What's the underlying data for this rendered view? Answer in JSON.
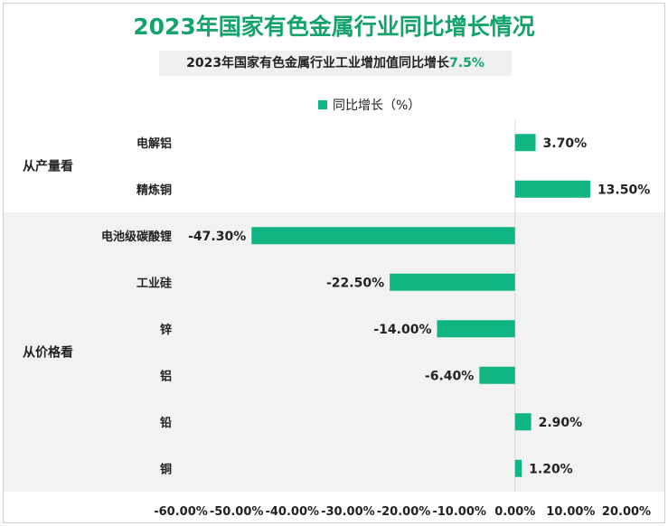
{
  "chart_data": {
    "type": "bar",
    "orientation": "horizontal",
    "title": "2023年国家有色金属行业同比增长情况",
    "subtitle": "2023年国家有色金属行业工业增加值同比增长",
    "subtitle_value": "7.5%",
    "legend": {
      "label": "同比增长（%）",
      "position": "top"
    },
    "bar_color": "#11b583",
    "groups": [
      {
        "label": "从产量看",
        "shaded": false,
        "categories": [
          "电解铝",
          "精炼铜"
        ]
      },
      {
        "label": "从价格看",
        "shaded": true,
        "categories": [
          "电池级碳酸锂",
          "工业硅",
          "锌",
          "铝",
          "铅",
          "铜"
        ]
      }
    ],
    "categories": [
      "电解铝",
      "精炼铜",
      "电池级碳酸锂",
      "工业硅",
      "锌",
      "铝",
      "铅",
      "铜"
    ],
    "series": [
      {
        "name": "同比增长（%）",
        "values": [
          3.7,
          13.5,
          -47.3,
          -22.5,
          -14.0,
          -6.4,
          2.9,
          1.2
        ],
        "labels": [
          "3.70%",
          "13.50%",
          "-47.30%",
          "-22.50%",
          "-14.00%",
          "-6.40%",
          "2.90%",
          "1.20%"
        ]
      }
    ],
    "xlim": [
      -60,
      20
    ],
    "x_ticks": [
      "-60.00%",
      "-50.00%",
      "-40.00%",
      "-30.00%",
      "-20.00%",
      "-10.00%",
      "0.00%",
      "10.00%",
      "20.00%"
    ],
    "grid": false
  }
}
